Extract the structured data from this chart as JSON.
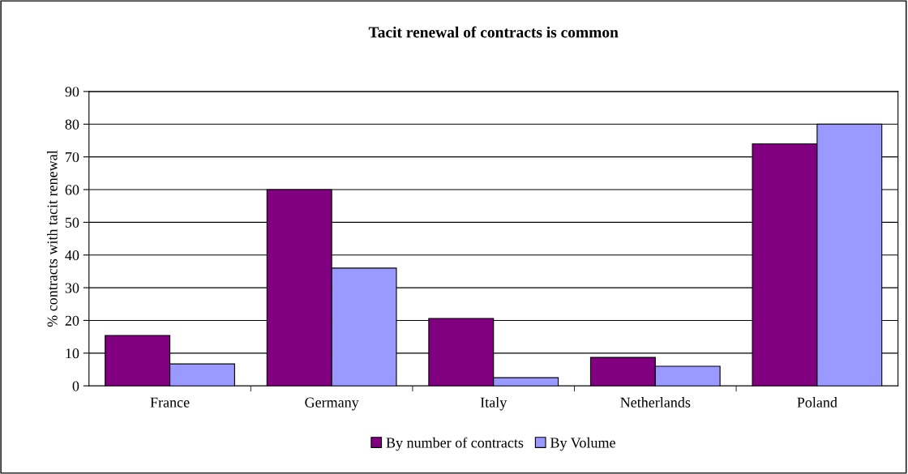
{
  "chart_data": {
    "type": "bar",
    "title": "Tacit renewal of contracts is common",
    "ylabel": "% contracts with tacit renewal",
    "categories": [
      "France",
      "Germany",
      "Italy",
      "Netherlands",
      "Poland"
    ],
    "series": [
      {
        "name": "By number of contracts",
        "color": "#800080",
        "values": [
          15.4,
          60,
          20.6,
          8.7,
          74
        ]
      },
      {
        "name": "By Volume",
        "color": "#9999ff",
        "values": [
          6.7,
          36,
          2.5,
          6,
          80
        ]
      }
    ],
    "ylim": [
      0,
      90
    ],
    "yticks": [
      0,
      10,
      20,
      30,
      40,
      50,
      60,
      70,
      80,
      90
    ],
    "grid": "y",
    "legend": "bottom"
  }
}
